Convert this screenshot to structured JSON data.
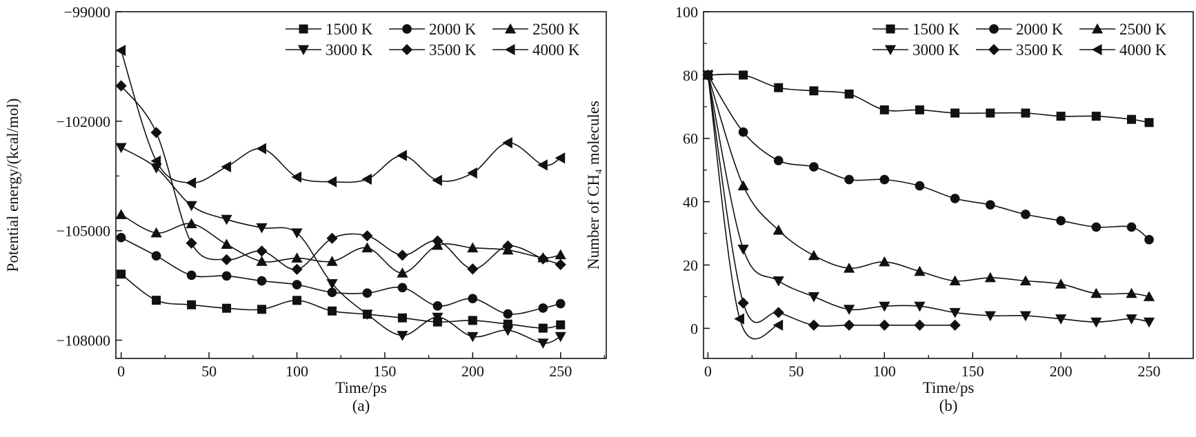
{
  "chart_data": [
    {
      "type": "line",
      "panel_label": "(a)",
      "xlabel": "Time/ps",
      "ylabel": "Potential energy/(kcal/mol)",
      "xlim": [
        -3,
        276
      ],
      "ylim": [
        -108500,
        -99000
      ],
      "xticks": [
        0,
        50,
        100,
        150,
        200,
        250
      ],
      "yticks": [
        -99000,
        -102000,
        -105000,
        -108000
      ],
      "grid": false,
      "legend_placement": "top-right",
      "x": [
        0,
        20,
        40,
        60,
        80,
        100,
        120,
        140,
        160,
        180,
        200,
        220,
        240,
        250
      ],
      "series": [
        {
          "name": "1500 K",
          "marker": "square",
          "values": [
            -106190,
            -106906,
            -107030,
            -107125,
            -107155,
            -106910,
            -107200,
            -107290,
            -107390,
            -107500,
            -107460,
            -107560,
            -107670,
            -107580
          ]
        },
        {
          "name": "2000 K",
          "marker": "circle",
          "values": [
            -105190,
            -105690,
            -106220,
            -106240,
            -106375,
            -106480,
            -106690,
            -106710,
            -106560,
            -107060,
            -106860,
            -107280,
            -107120,
            -107000
          ]
        },
        {
          "name": "2500 K",
          "marker": "triangle-up",
          "values": [
            -104560,
            -105060,
            -104810,
            -105375,
            -105840,
            -105750,
            -105840,
            -105470,
            -106160,
            -105400,
            -105470,
            -105530,
            -105740,
            -105660
          ]
        },
        {
          "name": "3000 K",
          "marker": "triangle-down",
          "values": [
            -102720,
            -103280,
            -104310,
            -104690,
            -104920,
            -105060,
            -106450,
            -107290,
            -107870,
            -107370,
            -107900,
            -107730,
            -108080,
            -107900
          ]
        },
        {
          "name": "3500 K",
          "marker": "diamond",
          "values": [
            -101030,
            -102310,
            -105340,
            -105795,
            -105560,
            -106060,
            -105210,
            -105140,
            -105670,
            -105280,
            -106050,
            -105420,
            -105770,
            -105930
          ]
        },
        {
          "name": "4000 K",
          "marker": "triangle-left",
          "values": [
            -100060,
            -103090,
            -103690,
            -103250,
            -102750,
            -103530,
            -103660,
            -103590,
            -102940,
            -103620,
            -103420,
            -102590,
            -103200,
            -103010
          ]
        }
      ]
    },
    {
      "type": "line",
      "panel_label": "(b)",
      "xlabel": "Time/ps",
      "ylabel": "Number of CH₄ molecules",
      "xlim": [
        -2.5,
        275
      ],
      "ylim": [
        -9.5,
        100
      ],
      "xticks": [
        0,
        50,
        100,
        150,
        200,
        250
      ],
      "yticks": [
        0,
        20,
        40,
        60,
        80,
        100
      ],
      "grid": false,
      "legend_placement": "top-right",
      "series": [
        {
          "name": "1500 K",
          "marker": "square",
          "x": [
            0,
            20,
            40,
            60,
            80,
            100,
            120,
            140,
            160,
            180,
            200,
            220,
            240,
            250
          ],
          "values": [
            80,
            80,
            76,
            75,
            74,
            69,
            69,
            68,
            68,
            68,
            67,
            67,
            66,
            65
          ]
        },
        {
          "name": "2000 K",
          "marker": "circle",
          "x": [
            0,
            20,
            40,
            60,
            80,
            100,
            120,
            140,
            160,
            180,
            200,
            220,
            240,
            250
          ],
          "values": [
            80,
            62,
            53,
            51,
            47,
            47,
            45,
            41,
            39,
            36,
            34,
            32,
            32,
            28
          ]
        },
        {
          "name": "2500 K",
          "marker": "triangle-up",
          "x": [
            0,
            20,
            40,
            60,
            80,
            100,
            120,
            140,
            160,
            180,
            200,
            220,
            240,
            250
          ],
          "values": [
            80,
            45,
            31,
            23,
            19,
            21,
            18,
            15,
            16,
            15,
            14,
            11,
            11,
            10
          ]
        },
        {
          "name": "3000 K",
          "marker": "triangle-down",
          "x": [
            0,
            20,
            40,
            60,
            80,
            100,
            120,
            140,
            160,
            180,
            200,
            220,
            240,
            250
          ],
          "values": [
            80,
            25,
            15,
            10,
            6,
            7,
            7,
            5,
            4,
            4,
            3,
            2,
            3,
            2
          ]
        },
        {
          "name": "3500 K",
          "marker": "diamond",
          "x": [
            0,
            20,
            40,
            60,
            80,
            100,
            120,
            140
          ],
          "values": [
            80,
            8,
            5,
            1,
            1,
            1,
            1,
            1
          ]
        },
        {
          "name": "4000 K",
          "marker": "triangle-left",
          "x": [
            0,
            18,
            40
          ],
          "values": [
            80,
            3,
            1
          ]
        }
      ]
    }
  ]
}
